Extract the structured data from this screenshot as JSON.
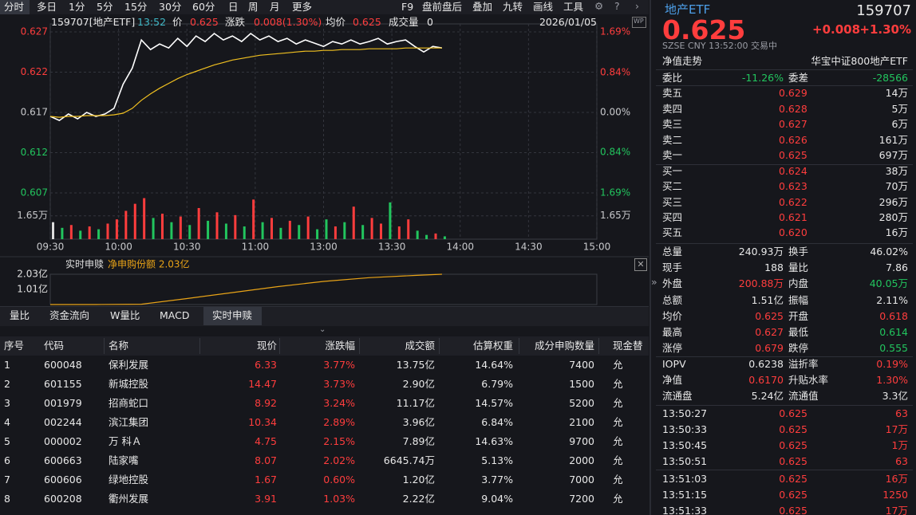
{
  "toolbar": {
    "periods": [
      "分时",
      "多日",
      "1分",
      "5分",
      "15分",
      "30分",
      "60分",
      "日",
      "周",
      "月",
      "更多"
    ],
    "tools": [
      "F9",
      "盘前盘后",
      "叠加",
      "九转",
      "画线",
      "工具"
    ]
  },
  "chart_header": {
    "symbol": "159707[地产ETF]",
    "time": "13:52",
    "price": "0.625",
    "change_label": "涨跌",
    "change": "0.008(1.30%)",
    "avg": "0.625",
    "volume_label": "成交量",
    "volume": "0",
    "date": "2026/01/05",
    "badge": "WP"
  },
  "chart_data": [
    {
      "type": "line",
      "x": [
        0,
        4,
        8,
        12,
        16,
        20,
        24,
        28,
        32,
        36,
        40,
        44,
        48,
        52,
        56,
        60,
        64,
        68,
        72,
        76,
        80,
        84,
        88,
        92,
        96,
        100,
        104,
        108,
        112,
        116,
        120,
        124,
        128,
        132,
        136,
        140,
        144,
        148,
        152,
        156,
        160,
        164,
        168,
        172
      ],
      "xlim": [
        0,
        240
      ],
      "xticks": [
        {
          "value": 0,
          "label": "09:30"
        },
        {
          "value": 30,
          "label": "10:00"
        },
        {
          "value": 60,
          "label": "10:30"
        },
        {
          "value": 90,
          "label": "11:00"
        },
        {
          "value": 120,
          "label": "13:00"
        },
        {
          "value": 150,
          "label": "13:30"
        },
        {
          "value": 180,
          "label": "14:00"
        },
        {
          "value": 210,
          "label": "14:30"
        },
        {
          "value": 240,
          "label": "15:00"
        }
      ],
      "ylim": [
        0.607,
        0.627
      ],
      "yticks": [
        0.607,
        0.612,
        0.617,
        0.622,
        0.627
      ],
      "y2lim": [
        -1.69,
        1.69
      ],
      "y2ticks": [
        {
          "value": -1.69,
          "label": "1.69%"
        },
        {
          "value": -0.84,
          "label": "0.84%"
        },
        {
          "value": 0,
          "label": "0.00%"
        },
        {
          "value": 0.84,
          "label": "0.84%"
        },
        {
          "value": 1.69,
          "label": "1.69%"
        }
      ],
      "grid": true,
      "series": [
        {
          "name": "价",
          "color": "#ffffff",
          "values": [
            0.6165,
            0.616,
            0.6168,
            0.6162,
            0.617,
            0.6165,
            0.6168,
            0.6175,
            0.6205,
            0.6225,
            0.626,
            0.6248,
            0.6255,
            0.625,
            0.6262,
            0.6252,
            0.6265,
            0.6258,
            0.6268,
            0.626,
            0.6265,
            0.6258,
            0.6268,
            0.626,
            0.6265,
            0.6258,
            0.6262,
            0.6255,
            0.626,
            0.6256,
            0.6252,
            0.6258,
            0.6255,
            0.626,
            0.6255,
            0.6258,
            0.6262,
            0.6255,
            0.6258,
            0.626,
            0.6252,
            0.6245,
            0.6252,
            0.625
          ]
        },
        {
          "name": "均价",
          "color": "#f0c020",
          "values": [
            0.6165,
            0.6164,
            0.6165,
            0.6165,
            0.6166,
            0.6166,
            0.6166,
            0.6167,
            0.6169,
            0.6175,
            0.6185,
            0.6193,
            0.62,
            0.6206,
            0.6212,
            0.6217,
            0.6221,
            0.6225,
            0.6229,
            0.6232,
            0.6235,
            0.6237,
            0.6239,
            0.6241,
            0.6242,
            0.6243,
            0.6244,
            0.6245,
            0.6246,
            0.6246,
            0.6247,
            0.6247,
            0.6248,
            0.6248,
            0.6248,
            0.6249,
            0.6249,
            0.6249,
            0.6249,
            0.625,
            0.625,
            0.625,
            0.625,
            0.625
          ]
        }
      ]
    },
    {
      "type": "bar",
      "x": [
        0,
        4,
        8,
        12,
        16,
        20,
        24,
        28,
        32,
        36,
        40,
        44,
        48,
        52,
        56,
        60,
        64,
        68,
        72,
        76,
        80,
        84,
        88,
        92,
        96,
        100,
        104,
        108,
        112,
        116,
        120,
        124,
        128,
        132,
        136,
        140,
        144,
        148,
        152,
        156,
        160,
        164,
        168,
        172
      ],
      "values": [
        1.2,
        0.8,
        1.0,
        0.6,
        0.9,
        0.7,
        1.1,
        1.4,
        2.0,
        2.5,
        2.9,
        1.5,
        1.8,
        1.2,
        1.6,
        1.0,
        2.2,
        1.3,
        1.9,
        1.1,
        1.7,
        0.9,
        2.8,
        1.2,
        1.5,
        0.8,
        1.3,
        1.0,
        1.6,
        0.7,
        1.4,
        0.9,
        1.2,
        2.3,
        1.0,
        1.5,
        1.1,
        2.6,
        0.9,
        1.4,
        0.6,
        0.3,
        0.4,
        0.2
      ],
      "xlim": [
        0,
        240
      ],
      "ylim": [
        0,
        3.1
      ],
      "yticks": [
        {
          "value": 1.65,
          "label": "1.65万"
        }
      ]
    },
    {
      "type": "line",
      "title": "实时申赎",
      "x": [
        0,
        20,
        40,
        60,
        80,
        100,
        120,
        140,
        160,
        172
      ],
      "xlim": [
        0,
        240
      ],
      "series": [
        {
          "name": "净申购份额 2.03亿",
          "color": "#e8a317",
          "values": [
            0,
            0,
            0.02,
            0.4,
            0.8,
            1.2,
            1.55,
            1.8,
            1.95,
            2.03
          ]
        }
      ],
      "ylim": [
        0,
        2.03
      ],
      "yticks": [
        {
          "value": 1.01,
          "label": "1.01亿"
        },
        {
          "value": 2.03,
          "label": "2.03亿"
        }
      ]
    }
  ],
  "tabs": [
    "量比",
    "资金流向",
    "W量比",
    "MACD",
    "实时申赎"
  ],
  "table": {
    "headers": [
      "序号",
      "代码",
      "名称",
      "现价",
      "涨跌幅",
      "成交额",
      "估算权重",
      "成分申购数量",
      "现金替"
    ],
    "rows": [
      [
        "1",
        "600048",
        "保利发展",
        "6.33",
        "3.77%",
        "13.75亿",
        "14.64%",
        "7400",
        "允"
      ],
      [
        "2",
        "601155",
        "新城控股",
        "14.47",
        "3.73%",
        "2.90亿",
        "6.79%",
        "1500",
        "允"
      ],
      [
        "3",
        "001979",
        "招商蛇口",
        "8.92",
        "3.24%",
        "11.17亿",
        "14.57%",
        "5200",
        "允"
      ],
      [
        "4",
        "002244",
        "滨江集团",
        "10.34",
        "2.89%",
        "3.96亿",
        "6.84%",
        "2100",
        "允"
      ],
      [
        "5",
        "000002",
        "万 科Ａ",
        "4.75",
        "2.15%",
        "7.89亿",
        "14.63%",
        "9700",
        "允"
      ],
      [
        "6",
        "600663",
        "陆家嘴",
        "8.07",
        "2.02%",
        "6645.74万",
        "5.13%",
        "2000",
        "允"
      ],
      [
        "7",
        "600606",
        "绿地控股",
        "1.67",
        "0.60%",
        "1.20亿",
        "3.77%",
        "7000",
        "允"
      ],
      [
        "8",
        "600208",
        "衢州发展",
        "3.91",
        "1.03%",
        "2.22亿",
        "9.04%",
        "7200",
        "允"
      ]
    ]
  },
  "quote": {
    "name": "地产ETF",
    "code": "159707",
    "price": "0.625",
    "change": "+0.008",
    "change_pct": "+1.30%",
    "status": "SZSE  CNY  13:52:00  交易中",
    "nav_link": "净值走势",
    "fund": "华宝中证800地产ETF",
    "ratio": [
      "委比",
      "-11.26%",
      "委差",
      "-28566"
    ],
    "book": [
      [
        "卖五",
        "0.629",
        "14万"
      ],
      [
        "卖四",
        "0.628",
        "5万"
      ],
      [
        "卖三",
        "0.627",
        "6万"
      ],
      [
        "卖二",
        "0.626",
        "161万"
      ],
      [
        "卖一",
        "0.625",
        "697万"
      ],
      [
        "买一",
        "0.624",
        "38万"
      ],
      [
        "买二",
        "0.623",
        "70万"
      ],
      [
        "买三",
        "0.622",
        "296万"
      ],
      [
        "买四",
        "0.621",
        "280万"
      ],
      [
        "买五",
        "0.620",
        "16万"
      ]
    ],
    "stats": [
      [
        "总量",
        "240.93万",
        "换手",
        "46.02%"
      ],
      [
        "现手",
        "188",
        "量比",
        "7.86"
      ],
      [
        "外盘",
        "200.88万",
        "内盘",
        "40.05万"
      ],
      [
        "总额",
        "1.51亿",
        "振幅",
        "2.11%"
      ],
      [
        "均价",
        "0.625",
        "开盘",
        "0.618"
      ],
      [
        "最高",
        "0.627",
        "最低",
        "0.614"
      ],
      [
        "涨停",
        "0.679",
        "跌停",
        "0.555"
      ]
    ],
    "fund_stats": [
      [
        "IOPV",
        "0.6238",
        "溢折率",
        "0.19%"
      ],
      [
        "净值",
        "0.6170",
        "升贴水率",
        "1.30%"
      ],
      [
        "流通盘",
        "5.24亿",
        "流通值",
        "3.3亿"
      ]
    ],
    "trades": [
      [
        "13:50:27",
        "0.625",
        "63"
      ],
      [
        "13:50:33",
        "0.625",
        "17万"
      ],
      [
        "13:50:45",
        "0.625",
        "1万"
      ],
      [
        "13:50:51",
        "0.625",
        "63"
      ],
      [
        "13:51:03",
        "0.625",
        "16万"
      ],
      [
        "13:51:15",
        "0.625",
        "1250"
      ],
      [
        "13:51:33",
        "0.625",
        "17万"
      ]
    ]
  }
}
